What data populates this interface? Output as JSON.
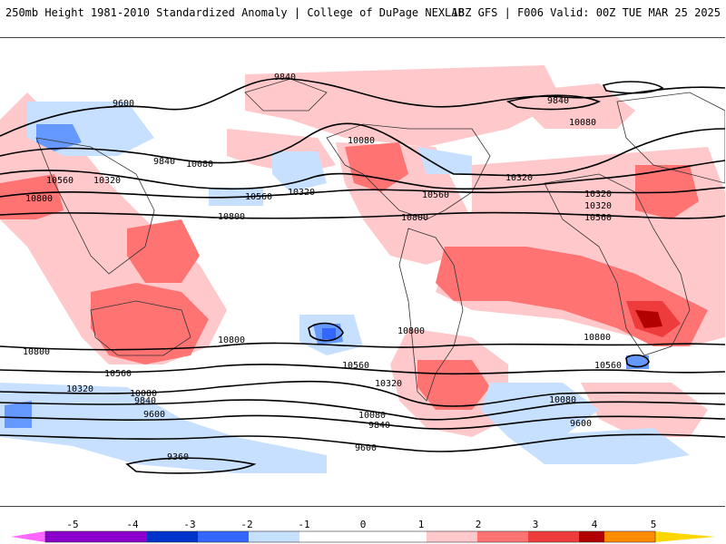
{
  "header": {
    "left_title": "250mb Height 1981-2010 Standardized Anomaly | College of DuPage NEXLAB",
    "right_title": "18Z GFS | F006 Valid: 00Z TUE MAR 25 2025"
  },
  "map": {
    "variable": "250mb geopotential height standardized anomaly",
    "contour_labels": [
      "9840",
      "9600",
      "10080",
      "9840",
      "10320",
      "10560",
      "10800",
      "10080",
      "10560",
      "10320",
      "10800",
      "10080",
      "9840",
      "10320",
      "10080",
      "10560",
      "10320",
      "10800",
      "10560",
      "10800",
      "10800",
      "10800",
      "10800",
      "10800",
      "10560",
      "10560",
      "10560",
      "10320",
      "10080",
      "9840",
      "10320",
      "10080",
      "9600",
      "10080",
      "9840",
      "9600",
      "9600",
      "9360"
    ]
  },
  "colorbar": {
    "ticks": [
      "-5",
      "-4",
      "-3",
      "-2",
      "-1",
      "0",
      "1",
      "2",
      "3",
      "4",
      "5"
    ],
    "colors": [
      "#ff66ff",
      "#8b00cc",
      "#0033cc",
      "#3366ff",
      "#6699ff",
      "#c7e0ff",
      "#ffffff",
      "#ffc9cc",
      "#ff7373",
      "#ee3b3b",
      "#b30000",
      "#ff8c00",
      "#ffd700"
    ]
  }
}
